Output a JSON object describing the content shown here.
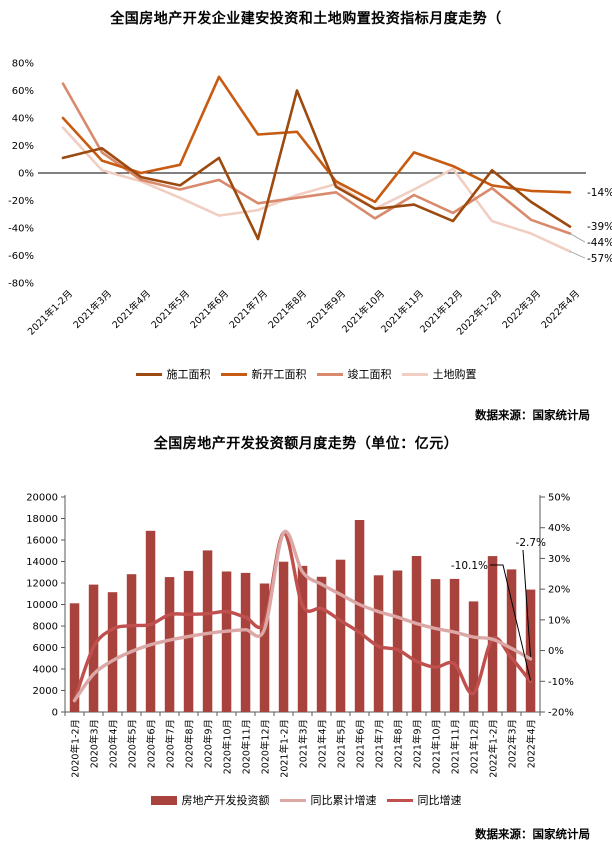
{
  "chart_data": [
    {
      "type": "line",
      "title": "全国房地产开发企业建安投资和土地购置投资指标月度走势（",
      "source": "数据来源：国家统计局",
      "ylim": [
        -80,
        80
      ],
      "ytick_step": 20,
      "ytick_format": "percent",
      "grid": false,
      "legend_position": "bottom",
      "categories": [
        "2021年1-2月",
        "2021年3月",
        "2021年4月",
        "2021年5月",
        "2021年6月",
        "2021年7月",
        "2021年8月",
        "2021年9月",
        "2021年10月",
        "2021年11月",
        "2021年12月",
        "2022年1-2月",
        "2022年3月",
        "2022年4月"
      ],
      "series": [
        {
          "key": "land-purchase",
          "name": "土地购置",
          "color": "#F1CEC2",
          "end_label": "-57%",
          "values": [
            33,
            2,
            -6,
            -18,
            -31,
            -27,
            -16,
            -8,
            -26,
            -12,
            3,
            -35,
            -44,
            -57
          ]
        },
        {
          "key": "completions",
          "name": "竣工面积",
          "color": "#D98A6C",
          "end_label": "-44%",
          "values": [
            65,
            15,
            -5,
            -12,
            -5,
            -22,
            -18,
            -14,
            -33,
            -16,
            -29,
            -11,
            -34,
            -44
          ]
        },
        {
          "key": "new-starts",
          "name": "新开工面积",
          "color": "#C85B12",
          "end_label": "-14%",
          "values": [
            40,
            9,
            0,
            6,
            70,
            28,
            30,
            -6,
            -21,
            15,
            5,
            -9,
            -13,
            -14
          ]
        },
        {
          "key": "construction-area",
          "name": "施工面积",
          "color": "#9C4A0F",
          "end_label": "-39%",
          "values": [
            11,
            18,
            -3,
            -9,
            11,
            -48,
            60,
            -10,
            -26,
            -23,
            -35,
            2,
            -21,
            -39
          ]
        }
      ],
      "legend_order": [
        "施工面积",
        "新开工面积",
        "竣工面积",
        "土地购置"
      ]
    },
    {
      "type": "bar+line",
      "title": "全国房地产开发投资额月度走势（单位：亿元）",
      "source": "数据来源：国家统计局",
      "left_ylim": [
        0,
        20000
      ],
      "left_ytick_step": 2000,
      "right_ylim": [
        -20,
        50
      ],
      "right_ytick_step": 10,
      "grid": false,
      "legend_position": "bottom",
      "categories": [
        "2020年1-2月",
        "2020年3月",
        "2020年4月",
        "2020年5月",
        "2020年6月",
        "2020年7月",
        "2020年8月",
        "2020年9月",
        "2020年10月",
        "2020年11月",
        "2020年12月",
        "2021年1-2月",
        "2021年3月",
        "2021年4月",
        "2021年5月",
        "2021年6月",
        "2021年7月",
        "2021年8月",
        "2021年9月",
        "2021年10月",
        "2021年11月",
        "2021年12月",
        "2022年1-2月",
        "2022年3月",
        "2022年4月"
      ],
      "bar_series": {
        "key": "investment",
        "name": "房地产开发投资额",
        "color": "#A7423D",
        "values": [
          10115,
          11848,
          11140,
          12817,
          16860,
          12545,
          13129,
          15030,
          13072,
          12936,
          11951,
          13986,
          13590,
          12578,
          14164,
          17861,
          12716,
          13165,
          14508,
          12366,
          12380,
          10288,
          14499,
          13266,
          11389
        ]
      },
      "line_series": [
        {
          "key": "monthly-growth",
          "name": "同比增速",
          "color": "#C0504D",
          "annotation": "-10.1%",
          "values": [
            -16.3,
            1.1,
            7.0,
            8.1,
            8.5,
            11.7,
            11.8,
            12.0,
            12.7,
            10.9,
            9.3,
            38.3,
            14.7,
            13.7,
            9.8,
            5.9,
            1.4,
            0.3,
            -3.5,
            -5.4,
            -4.3,
            -13.9,
            3.7,
            -2.4,
            -10.1
          ]
        },
        {
          "key": "cumulative-growth",
          "name": "同比累计增速",
          "color": "#DBA8A5",
          "annotation": "-2.7%",
          "values": [
            -16.3,
            -7.7,
            -3.3,
            -0.3,
            1.9,
            3.4,
            4.6,
            5.6,
            6.3,
            6.8,
            7.0,
            38.3,
            25.6,
            21.6,
            18.3,
            15.0,
            12.7,
            10.9,
            8.8,
            7.2,
            6.0,
            4.4,
            3.7,
            0.7,
            -2.7
          ]
        }
      ],
      "legend_order": [
        "房地产开发投资额",
        "同比累计增速",
        "同比增速"
      ]
    }
  ]
}
